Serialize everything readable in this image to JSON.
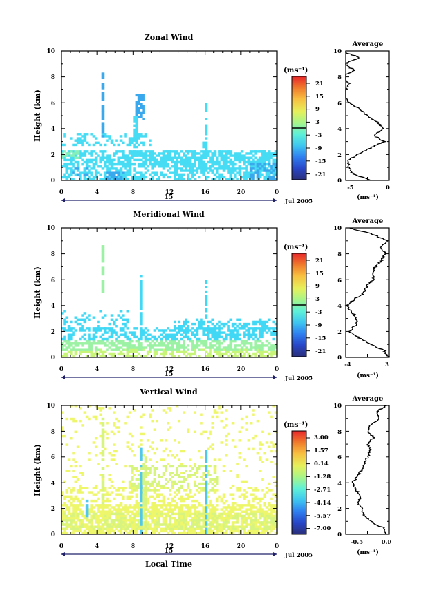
{
  "panels": [
    {
      "title": "Zonal Wind",
      "ylabel": "Height (km)",
      "yticks": [
        "0",
        "2",
        "4",
        "6",
        "8",
        "10"
      ],
      "xticks": [
        "0",
        "4",
        "8",
        "12",
        "16",
        "20",
        "0"
      ],
      "date_mid": "15",
      "date_label": "Jul 2005",
      "cbar_unit": "(ms⁻¹)",
      "cbar_labels": [
        "21",
        "15",
        "9",
        "3",
        "-3",
        "-9",
        "-15",
        "-21"
      ],
      "avg_title": "Average",
      "avg_xticks": [
        "-5",
        "0"
      ],
      "avg_xunit": "(ms⁻¹)",
      "avg_yticks": [
        "0",
        "2",
        "4",
        "6",
        "8",
        "10"
      ]
    },
    {
      "title": "Meridional Wind",
      "ylabel": "Height (km)",
      "yticks": [
        "0",
        "2",
        "4",
        "6",
        "8",
        "10"
      ],
      "xticks": [
        "0",
        "4",
        "8",
        "12",
        "16",
        "20",
        "0"
      ],
      "date_mid": "15",
      "date_label": "Jul 2005",
      "cbar_unit": "(ms⁻¹)",
      "cbar_labels": [
        "21",
        "15",
        "9",
        "3",
        "-3",
        "-9",
        "-15",
        "-21"
      ],
      "avg_title": "Average",
      "avg_xticks": [
        "-4",
        "3"
      ],
      "avg_xunit": "(ms⁻¹)",
      "avg_yticks": [
        "0",
        "2",
        "4",
        "6",
        "8",
        "10"
      ]
    },
    {
      "title": "Vertical Wind",
      "ylabel": "Height (km)",
      "yticks": [
        "0",
        "2",
        "4",
        "6",
        "8",
        "10"
      ],
      "xticks": [
        "0",
        "4",
        "8",
        "12",
        "16",
        "20",
        "0"
      ],
      "date_mid": "15",
      "date_label": "Jul 2005",
      "xlabel": "Local Time",
      "cbar_unit": "(ms⁻¹)",
      "cbar_labels": [
        "3.00",
        "1.57",
        "0.14",
        "-1.28",
        "-2.71",
        "-4.14",
        "-5.57",
        "-7.00"
      ],
      "avg_title": "Average",
      "avg_xticks": [
        "-0.5",
        "0.0"
      ],
      "avg_xunit": "(ms⁻¹)",
      "avg_yticks": [
        "0",
        "2",
        "4",
        "6",
        "8",
        "10"
      ]
    }
  ],
  "colors": {
    "scale": [
      "#2b2f7a",
      "#2846c8",
      "#2f7ff0",
      "#3ec6f0",
      "#5ef0d8",
      "#a6f58a",
      "#e6f05a",
      "#f8c040",
      "#f07a2c",
      "#e8262a"
    ],
    "zonal_main": "#46dcf4",
    "zonal_deep": "#3aa8ec",
    "zonal_low": "#86f0b8",
    "merid_main": "#40d8f4",
    "merid_low": "#9cf2a4",
    "merid_band": "#c8f478",
    "vert_main": "#eef66a",
    "vert_light": "#d8f480",
    "vert_cyan": "#4ec8ec"
  },
  "chart_data": [
    {
      "type": "heatmap",
      "title": "Zonal Wind",
      "x_range_hours": [
        0,
        24
      ],
      "y_range_km": [
        0,
        10
      ],
      "colorbar_range": [
        -21,
        21
      ],
      "average_profile": {
        "xlim": [
          -5,
          0
        ],
        "height_km": [
          0,
          0.5,
          1,
          1.5,
          2,
          2.5,
          3,
          3.5,
          4,
          4.5,
          5,
          5.5,
          6,
          6.5,
          7,
          7.5,
          8,
          8.5,
          9,
          9.5,
          10
        ],
        "value": [
          -2.0,
          -4.2,
          -4.6,
          -4.8,
          -3.6,
          -2.2,
          -0.6,
          -1.8,
          -0.6,
          -1.4,
          -2.6,
          -3.4,
          -4.6,
          -5.2,
          -5.0,
          -4.6,
          -5.6,
          -4.0,
          -5.2,
          -3.4,
          -5.6
        ]
      }
    },
    {
      "type": "heatmap",
      "title": "Meridional Wind",
      "x_range_hours": [
        0,
        24
      ],
      "y_range_km": [
        0,
        10
      ],
      "colorbar_range": [
        -21,
        21
      ],
      "average_profile": {
        "xlim": [
          -4,
          3
        ],
        "height_km": [
          0,
          0.5,
          1,
          1.5,
          2,
          2.5,
          3,
          3.5,
          4,
          4.5,
          5,
          5.5,
          6,
          6.5,
          7,
          7.5,
          8,
          8.5,
          9,
          9.5,
          10
        ],
        "value": [
          3.0,
          2.2,
          0.2,
          -1.8,
          -3.4,
          -2.4,
          -2.2,
          -3.0,
          -3.8,
          -2.6,
          -1.0,
          -0.6,
          0.4,
          0.4,
          0.8,
          1.8,
          2.4,
          1.6,
          2.6,
          0.4,
          -3.4
        ]
      }
    },
    {
      "type": "heatmap",
      "title": "Vertical Wind",
      "x_range_hours": [
        0,
        24
      ],
      "y_range_km": [
        0,
        10
      ],
      "colorbar_range": [
        -7.0,
        3.0
      ],
      "average_profile": {
        "xlim": [
          -0.7,
          0.0
        ],
        "height_km": [
          0,
          0.5,
          1,
          1.5,
          2,
          2.5,
          3,
          3.5,
          4,
          4.5,
          5,
          5.5,
          6,
          6.5,
          7,
          7.5,
          8,
          8.5,
          9,
          9.5,
          10
        ],
        "value": [
          -0.05,
          -0.1,
          -0.3,
          -0.4,
          -0.45,
          -0.5,
          -0.45,
          -0.55,
          -0.6,
          -0.5,
          -0.45,
          -0.4,
          -0.35,
          -0.3,
          -0.35,
          -0.25,
          -0.35,
          -0.3,
          -0.15,
          -0.2,
          -0.05
        ]
      }
    }
  ]
}
